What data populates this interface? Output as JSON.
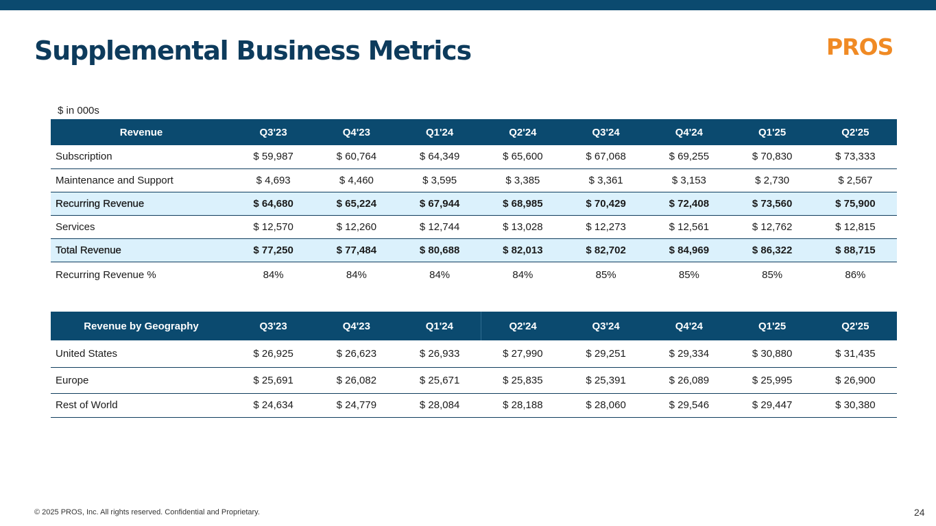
{
  "page": {
    "title": "Supplemental Business Metrics",
    "logo_text": "PROS",
    "units_note": "$ in 000s",
    "footer": "© 2025 PROS, Inc. All rights reserved. Confidential and Proprietary.",
    "page_number": "24"
  },
  "colors": {
    "brand_navy": "#0b4a6f",
    "title_navy": "#0d3b5c",
    "brand_orange": "#f08a24",
    "highlight_row": "#dbf1fc"
  },
  "revenue_table": {
    "headers": [
      "Revenue",
      "Q3'23",
      "Q4'23",
      "Q1'24",
      "Q2'24",
      "Q3'24",
      "Q4'24",
      "Q1'25",
      "Q2'25"
    ],
    "rows": [
      {
        "label": "Subscription",
        "values": [
          "$ 59,987",
          "$ 60,764",
          "$ 64,349",
          "$ 65,600",
          "$ 67,068",
          "$ 69,255",
          "$ 70,830",
          "$ 73,333"
        ]
      },
      {
        "label": "Maintenance and Support",
        "values": [
          "$  4,693",
          "$  4,460",
          "$  3,595",
          "$  3,385",
          "$  3,361",
          "$  3,153",
          "$  2,730",
          "$  2,567"
        ]
      },
      {
        "label": "Recurring Revenue",
        "values": [
          "$ 64,680",
          "$ 65,224",
          "$ 67,944",
          "$ 68,985",
          "$ 70,429",
          "$ 72,408",
          "$ 73,560",
          "$ 75,900"
        ]
      },
      {
        "label": "Services",
        "values": [
          "$ 12,570",
          "$ 12,260",
          "$ 12,744",
          "$ 13,028",
          "$ 12,273",
          "$ 12,561",
          "$ 12,762",
          "$ 12,815"
        ]
      },
      {
        "label": "Total Revenue",
        "values": [
          "$ 77,250",
          "$ 77,484",
          "$ 80,688",
          "$ 82,013",
          "$ 82,702",
          "$ 84,969",
          "$ 86,322",
          "$ 88,715"
        ]
      },
      {
        "label": "Recurring Revenue %",
        "values": [
          "84%",
          "84%",
          "84%",
          "84%",
          "85%",
          "85%",
          "85%",
          "86%"
        ]
      }
    ]
  },
  "geo_table": {
    "headers": [
      "Revenue by Geography",
      "Q3'23",
      "Q4'23",
      "Q1'24",
      "Q2'24",
      "Q3'24",
      "Q4'24",
      "Q1'25",
      "Q2'25"
    ],
    "rows": [
      {
        "label": "United States",
        "values": [
          "$ 26,925",
          "$ 26,623",
          "$ 26,933",
          "$ 27,990",
          "$ 29,251",
          "$ 29,334",
          "$ 30,880",
          "$ 31,435"
        ]
      },
      {
        "label": "Europe",
        "values": [
          "$ 25,691",
          "$ 26,082",
          "$ 25,671",
          "$ 25,835",
          "$ 25,391",
          "$ 26,089",
          "$ 25,995",
          "$ 26,900"
        ]
      },
      {
        "label": "Rest of World",
        "values": [
          "$ 24,634",
          "$ 24,779",
          "$ 28,084",
          "$ 28,188",
          "$ 28,060",
          "$ 29,546",
          "$ 29,447",
          "$ 30,380"
        ]
      }
    ]
  }
}
